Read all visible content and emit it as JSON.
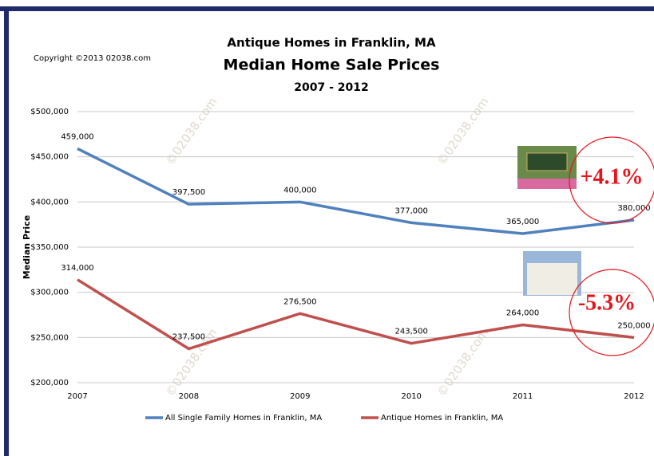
{
  "chart_data": {
    "type": "line",
    "title": "Antique Homes in Franklin, MA",
    "subtitle": "Median Home Sale Prices",
    "period": "2007 - 2012",
    "copyright": "Copyright ©2013 02038.com",
    "y_label": "Median Price",
    "watermark": "©02038.com",
    "annotations": [
      "+4.1%",
      "-5.3%"
    ],
    "categories": [
      "2007",
      "2008",
      "2009",
      "2010",
      "2011",
      "2012"
    ],
    "series": [
      {
        "name": "All Single Family Homes in Franklin, MA",
        "color": "#4f81bd",
        "values": [
          459000,
          397500,
          400000,
          377000,
          365000,
          380000
        ],
        "value_labels": [
          "459,000",
          "397,500",
          "400,000",
          "377,000",
          "365,000",
          "380,000"
        ]
      },
      {
        "name": "Antique Homes in Franklin, MA",
        "color": "#c0504d",
        "values": [
          314000,
          237500,
          276500,
          243500,
          264000,
          250000
        ],
        "value_labels": [
          "314,000",
          "237,500",
          "276,500",
          "243,500",
          "264,000",
          "250,000"
        ]
      }
    ],
    "ylim": [
      200000,
      500000
    ],
    "yticks": [
      {
        "value": 200000,
        "label": "$200,000"
      },
      {
        "value": 250000,
        "label": "$250,000"
      },
      {
        "value": 300000,
        "label": "$300,000"
      },
      {
        "value": 350000,
        "label": "$350,000"
      },
      {
        "value": 400000,
        "label": "$400,000"
      },
      {
        "value": 450000,
        "label": "$450,000"
      },
      {
        "value": 500000,
        "label": "$500,000"
      }
    ],
    "grid": true
  }
}
